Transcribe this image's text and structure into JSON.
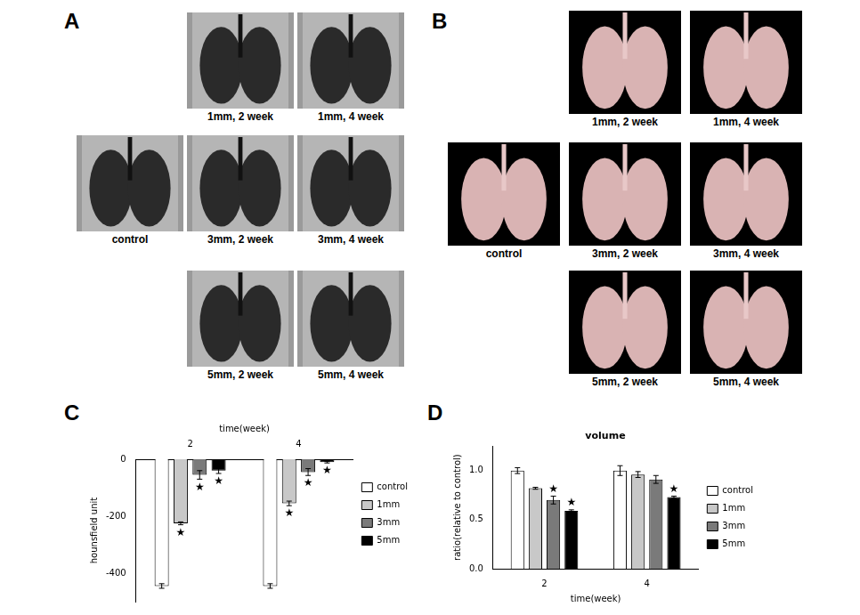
{
  "panels": [
    {
      "letter": "A",
      "images": [
        "1mm, 2 week",
        "1mm, 4 week",
        "control",
        "3mm, 2 week",
        "3mm, 4 week",
        "5mm, 2 week",
        "5mm, 4 week"
      ]
    },
    {
      "letter": "B",
      "images": [
        "1mm, 2 week",
        "1mm, 4 week",
        "control",
        "3mm, 2 week",
        "3mm, 4 week",
        "5mm, 2 week",
        "5mm, 4 week"
      ]
    }
  ],
  "chart_data": [
    {
      "letter": "C",
      "type": "bar",
      "xlabel": "time(week)",
      "ylabel": "hounsfield unit",
      "categories": [
        "2",
        "4"
      ],
      "ylim": [
        -500,
        0
      ],
      "yticks": [
        -400,
        -200,
        0
      ],
      "grid": false,
      "legend": "right",
      "series": [
        {
          "name": "control",
          "color": "#ffffff",
          "values": [
            -445,
            -445
          ],
          "errors": [
            8,
            8
          ],
          "significance": [
            null,
            null
          ]
        },
        {
          "name": "1mm",
          "color": "#c8c8c8",
          "values": [
            -225,
            -155
          ],
          "errors": [
            5,
            8
          ],
          "significance": [
            "★",
            "★"
          ]
        },
        {
          "name": "3mm",
          "color": "#7a7a7a",
          "values": [
            -55,
            -45
          ],
          "errors": [
            15,
            12
          ],
          "significance": [
            "★",
            "★"
          ]
        },
        {
          "name": "5mm",
          "color": "#000000",
          "values": [
            -40,
            -10
          ],
          "errors": [
            10,
            3
          ],
          "significance": [
            "★",
            "★"
          ]
        }
      ]
    },
    {
      "letter": "D",
      "type": "bar",
      "title": "volume",
      "xlabel": "time(week)",
      "ylabel": "ratio(relative to control)",
      "categories": [
        "2",
        "4"
      ],
      "ylim": [
        0,
        1.25
      ],
      "yticks": [
        {
          "value": 0,
          "label": "0.0"
        },
        {
          "value": 0.5,
          "label": "0.5"
        },
        {
          "value": 1,
          "label": "1.0"
        }
      ],
      "grid": false,
      "legend": "right",
      "series": [
        {
          "name": "control",
          "color": "#ffffff",
          "values": [
            1.0,
            1.0
          ],
          "errors": [
            0.03,
            0.05
          ],
          "significance": [
            null,
            null
          ]
        },
        {
          "name": "1mm",
          "color": "#c8c8c8",
          "values": [
            0.82,
            0.96
          ],
          "errors": [
            0.01,
            0.03
          ],
          "significance": [
            null,
            null
          ]
        },
        {
          "name": "3mm",
          "color": "#7a7a7a",
          "values": [
            0.7,
            0.91
          ],
          "errors": [
            0.04,
            0.04
          ],
          "significance": [
            "★",
            null
          ]
        },
        {
          "name": "5mm",
          "color": "#000000",
          "values": [
            0.59,
            0.73
          ],
          "errors": [
            0.01,
            0.01
          ],
          "significance": [
            "★",
            "★"
          ]
        }
      ]
    }
  ]
}
